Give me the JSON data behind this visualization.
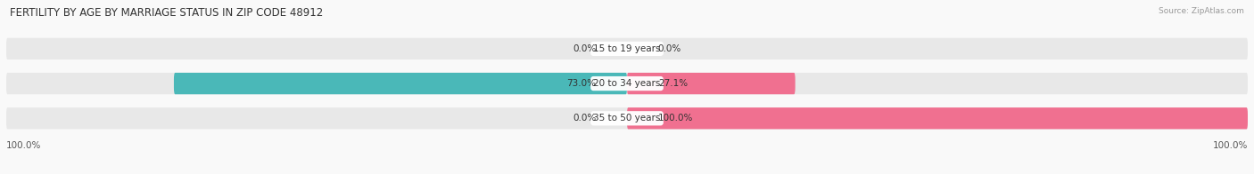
{
  "title": "FERTILITY BY AGE BY MARRIAGE STATUS IN ZIP CODE 48912",
  "source": "Source: ZipAtlas.com",
  "categories": [
    "15 to 19 years",
    "20 to 34 years",
    "35 to 50 years"
  ],
  "married": [
    0.0,
    73.0,
    0.0
  ],
  "unmarried": [
    0.0,
    27.1,
    100.0
  ],
  "married_color": "#4ab8b8",
  "unmarried_color": "#f07090",
  "bar_bg_color": "#e8e8e8",
  "bar_height": 0.62,
  "figsize": [
    14.06,
    1.96
  ],
  "dpi": 100,
  "title_fontsize": 8.5,
  "label_fontsize": 7.5,
  "source_fontsize": 6.5,
  "axis_label_left": "100.0%",
  "axis_label_right": "100.0%",
  "total_width": 100.0,
  "center_label_color": "#555555",
  "value_label_color": "#333333",
  "bg_color": "#f9f9f9"
}
